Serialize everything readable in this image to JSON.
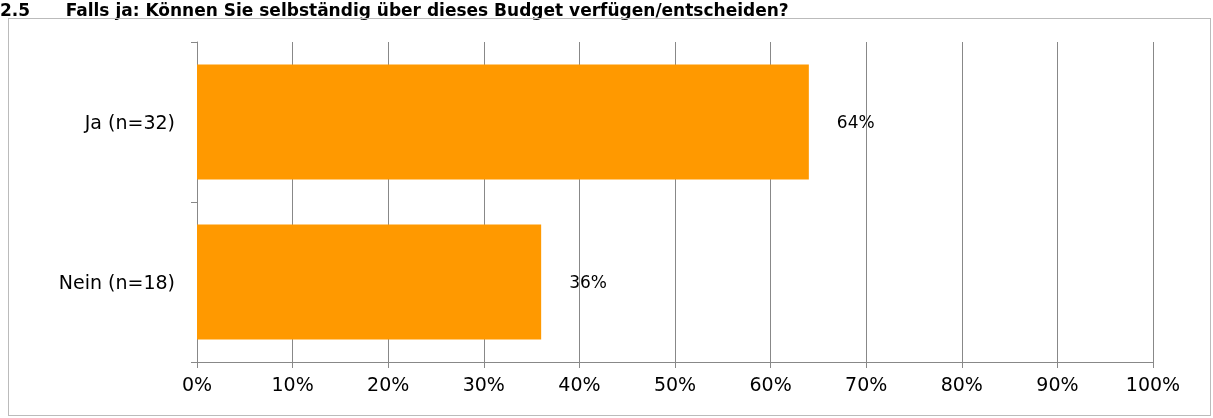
{
  "chart_data": {
    "type": "bar",
    "orientation": "horizontal",
    "title": "2.5      Falls ja: Können Sie selbständig über dieses Budget verfügen/entscheiden?",
    "categories": [
      "Ja (n=32)",
      "Nein (n=18)"
    ],
    "values": [
      64,
      36
    ],
    "color": "#ff9900",
    "value_labels": [
      "64%",
      "36%"
    ],
    "xlim": [
      0,
      100
    ],
    "xticks": [
      {
        "value": 0,
        "label": "0%"
      },
      {
        "value": 10,
        "label": "10%"
      },
      {
        "value": 20,
        "label": "20%"
      },
      {
        "value": 30,
        "label": "30%"
      },
      {
        "value": 40,
        "label": "40%"
      },
      {
        "value": 50,
        "label": "50%"
      },
      {
        "value": 60,
        "label": "60%"
      },
      {
        "value": 70,
        "label": "70%"
      },
      {
        "value": 80,
        "label": "80%"
      },
      {
        "value": 90,
        "label": "90%"
      },
      {
        "value": 100,
        "label": "100%"
      }
    ],
    "grid": "x"
  }
}
